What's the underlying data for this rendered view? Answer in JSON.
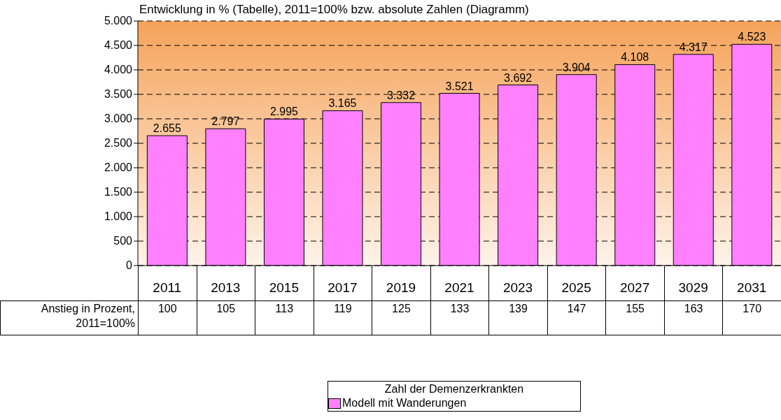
{
  "chart_data": {
    "type": "bar",
    "title": "Entwicklung in % (Tabelle), 2011=100% bzw. absolute Zahlen (Diagramm)",
    "categories": [
      "2011",
      "2013",
      "2015",
      "2017",
      "2019",
      "2021",
      "2023",
      "2025",
      "2027",
      "3029",
      "2031"
    ],
    "series": [
      {
        "name": "Modell mit Wanderungen",
        "color": "#ff80ff",
        "values": [
          2655,
          2797,
          2995,
          3165,
          3332,
          3521,
          3692,
          3904,
          4108,
          4317,
          4523
        ],
        "value_labels": [
          "2.655",
          "2.797",
          "2.995",
          "3.165",
          "3.332",
          "3.521",
          "3.692",
          "3.904",
          "4.108",
          "4.317",
          "4.523"
        ]
      }
    ],
    "ylim": [
      0,
      5000
    ],
    "yticks": [
      0,
      {
        "value": 500,
        "label": "500"
      },
      {
        "value": 1000,
        "label": "1.000"
      },
      {
        "value": 1500,
        "label": "1.500"
      },
      {
        "value": 2000,
        "label": "2.000"
      },
      {
        "value": 2500,
        "label": "2.500"
      },
      {
        "value": 3000,
        "label": "3.000"
      },
      {
        "value": 3500,
        "label": "3.500"
      },
      {
        "value": 4000,
        "label": "4.000"
      },
      {
        "value": 4500,
        "label": "4.500"
      },
      {
        "value": 5000,
        "label": "5.000"
      }
    ],
    "grid": "y",
    "legend": "bottom",
    "legend_title": "Zahl der Demenzerkrankten",
    "annotations": [
      "Anstieg in Prozent, 2011=100%",
      "100",
      "105",
      "113",
      "119",
      "125",
      "133",
      "139",
      "147",
      "155",
      "163",
      "170"
    ]
  }
}
